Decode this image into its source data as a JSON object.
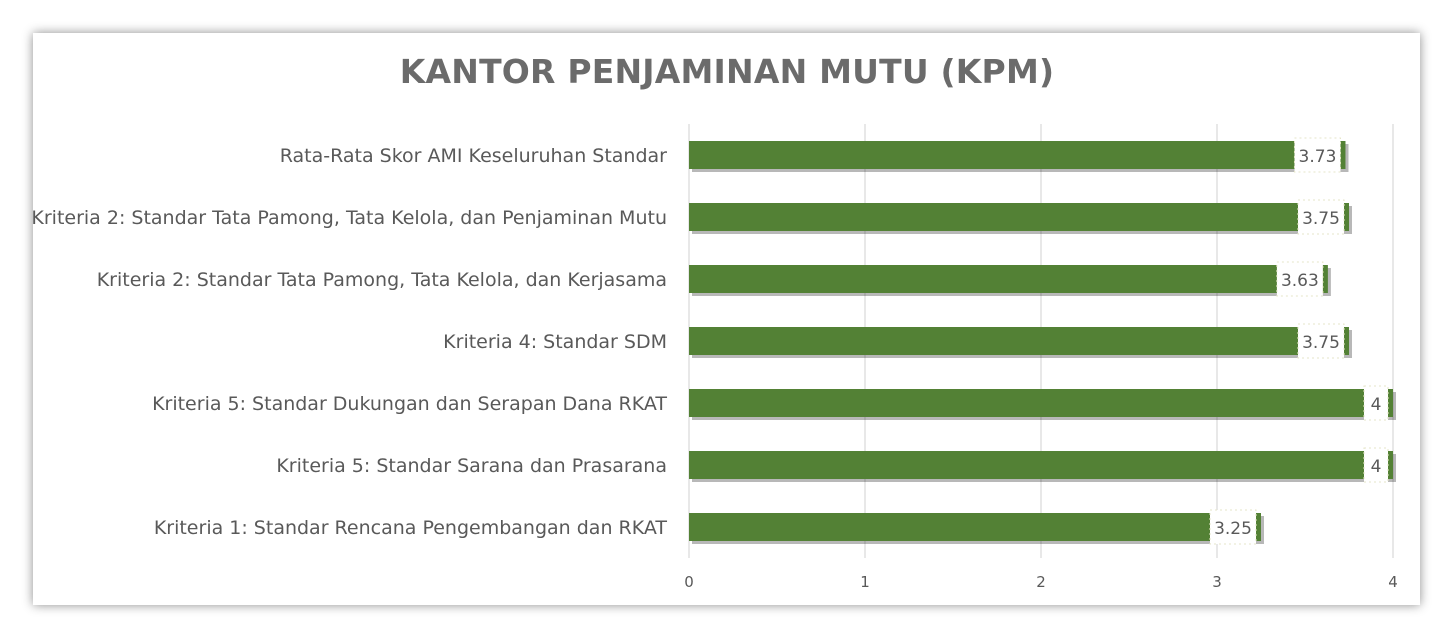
{
  "chart_data": {
    "type": "bar",
    "orientation": "horizontal",
    "title": "KANTOR PENJAMINAN MUTU (KPM)",
    "categories": [
      "Rata-Rata Skor AMI Keseluruhan Standar",
      "Kriteria 2: Standar Tata Pamong, Tata Kelola, dan Penjaminan Mutu",
      "Kriteria 2: Standar Tata Pamong, Tata Kelola, dan Kerjasama",
      "Kriteria 4: Standar SDM",
      "Kriteria 5: Standar Dukungan dan Serapan Dana RKAT",
      "Kriteria 5: Standar Sarana dan Prasarana",
      "Kriteria 1: Standar Rencana Pengembangan dan RKAT"
    ],
    "values": [
      3.73,
      3.75,
      3.63,
      3.75,
      4,
      4,
      3.25
    ],
    "value_labels": [
      "3.73",
      "3.75",
      "3.63",
      "3.75",
      "4",
      "4",
      "3.25"
    ],
    "xlim": [
      0,
      4
    ],
    "xticks": [
      "0",
      "1",
      "2",
      "3",
      "4"
    ],
    "grid": true,
    "bar_color": "#538135"
  }
}
